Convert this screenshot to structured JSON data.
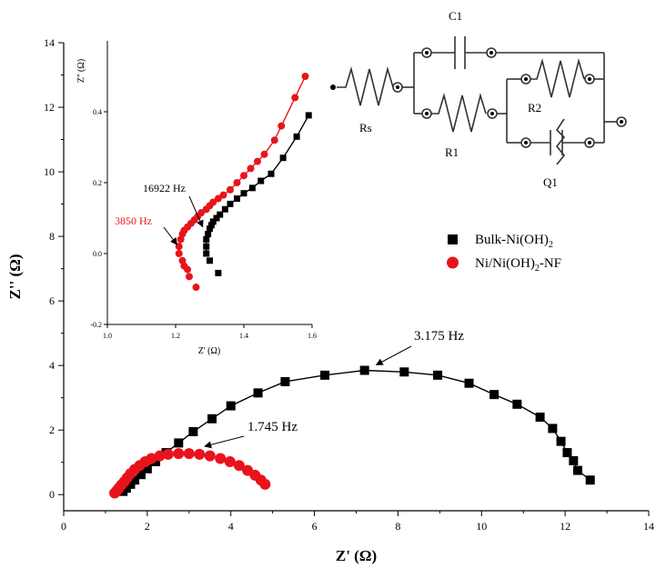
{
  "chart_data": [
    {
      "type": "scatter",
      "xlabel": "Z' (Ω)",
      "ylabel": "Z'' (Ω)",
      "xlim": [
        0,
        14
      ],
      "ylim": [
        -0.5,
        14
      ],
      "x_ticks": [
        "0",
        "2",
        "4",
        "6",
        "8",
        "10",
        "12",
        "14"
      ],
      "y_ticks": [
        "0",
        "2",
        "4",
        "6",
        "8",
        "10",
        "12",
        "14"
      ],
      "series": [
        {
          "name": "Bulk-Ni(OH)2",
          "color": "#000000",
          "marker": "square",
          "x": [
            1.42,
            1.5,
            1.6,
            1.7,
            1.85,
            2.0,
            2.2,
            2.45,
            2.75,
            3.1,
            3.55,
            4.0,
            4.65,
            5.3,
            6.25,
            7.2,
            8.15,
            8.95,
            9.7,
            10.3,
            10.85,
            11.4,
            11.7,
            11.9,
            12.05,
            12.2,
            12.3,
            12.6
          ],
          "y": [
            0.1,
            0.2,
            0.32,
            0.45,
            0.62,
            0.8,
            1.02,
            1.3,
            1.6,
            1.95,
            2.35,
            2.75,
            3.15,
            3.5,
            3.7,
            3.85,
            3.8,
            3.7,
            3.45,
            3.1,
            2.8,
            2.4,
            2.05,
            1.65,
            1.3,
            1.05,
            0.75,
            0.45
          ]
        },
        {
          "name": "Ni/Ni(OH)2-NF",
          "color": "#e8141c",
          "marker": "circle",
          "x": [
            1.22,
            1.27,
            1.32,
            1.38,
            1.45,
            1.52,
            1.6,
            1.7,
            1.82,
            1.95,
            2.1,
            2.3,
            2.5,
            2.75,
            3.0,
            3.25,
            3.5,
            3.75,
            3.98,
            4.2,
            4.4,
            4.58,
            4.72,
            4.82
          ],
          "y": [
            0.05,
            0.12,
            0.2,
            0.3,
            0.4,
            0.52,
            0.65,
            0.78,
            0.9,
            1.02,
            1.12,
            1.2,
            1.25,
            1.27,
            1.27,
            1.25,
            1.2,
            1.12,
            1.02,
            0.9,
            0.75,
            0.6,
            0.45,
            0.32
          ]
        }
      ],
      "annotations": [
        {
          "text": "3.175 Hz",
          "x": 7.0,
          "y": 3.85
        },
        {
          "text": "1.745 Hz",
          "x": 3.2,
          "y": 1.27
        }
      ]
    },
    {
      "type": "scatter",
      "xlabel": "Z' (Ω)",
      "ylabel": "Z'' (Ω)",
      "xlim": [
        1.0,
        1.6
      ],
      "ylim": [
        -0.2,
        0.6
      ],
      "x_ticks": [
        "1.0",
        "1.2",
        "1.4",
        "1.6"
      ],
      "y_ticks": [
        "-0.2",
        "0.0",
        "0.2",
        "0.4"
      ],
      "series": [
        {
          "name": "Bulk-Ni(OH)2",
          "color": "#000000",
          "marker": "square",
          "x": [
            1.3,
            1.29,
            1.29,
            1.29,
            1.295,
            1.3,
            1.305,
            1.31,
            1.32,
            1.33,
            1.345,
            1.36,
            1.38,
            1.4,
            1.425,
            1.45,
            1.48,
            1.515,
            1.555,
            1.59,
            1.325
          ],
          "y": [
            -0.02,
            0.0,
            0.02,
            0.04,
            0.055,
            0.07,
            0.08,
            0.09,
            0.1,
            0.11,
            0.125,
            0.14,
            0.155,
            0.17,
            0.185,
            0.205,
            0.225,
            0.27,
            0.33,
            0.39,
            -0.055
          ]
        },
        {
          "name": "Ni/Ni(OH)2-NF",
          "color": "#e8141c",
          "marker": "circle",
          "x": [
            1.21,
            1.21,
            1.215,
            1.22,
            1.225,
            1.235,
            1.245,
            1.255,
            1.265,
            1.275,
            1.29,
            1.3,
            1.31,
            1.325,
            1.34,
            1.36,
            1.38,
            1.4,
            1.42,
            1.44,
            1.46,
            1.49,
            1.51,
            1.55,
            1.58,
            1.22,
            1.225,
            1.235,
            1.24,
            1.26
          ],
          "y": [
            0.0,
            0.02,
            0.04,
            0.055,
            0.065,
            0.075,
            0.085,
            0.095,
            0.105,
            0.115,
            0.125,
            0.135,
            0.145,
            0.155,
            0.165,
            0.18,
            0.2,
            0.22,
            0.24,
            0.26,
            0.28,
            0.32,
            0.36,
            0.44,
            0.5,
            -0.02,
            -0.035,
            -0.045,
            -0.065,
            -0.095
          ]
        }
      ],
      "annotations": [
        {
          "text": "16922 Hz",
          "x": 1.29,
          "y": 0.07
        },
        {
          "text": "3850 Hz",
          "x": 1.215,
          "y": 0.02
        }
      ]
    }
  ],
  "circuit": {
    "rs": "Rs",
    "c1": "C1",
    "r1": "R1",
    "r2": "R2",
    "q1": "Q1"
  }
}
